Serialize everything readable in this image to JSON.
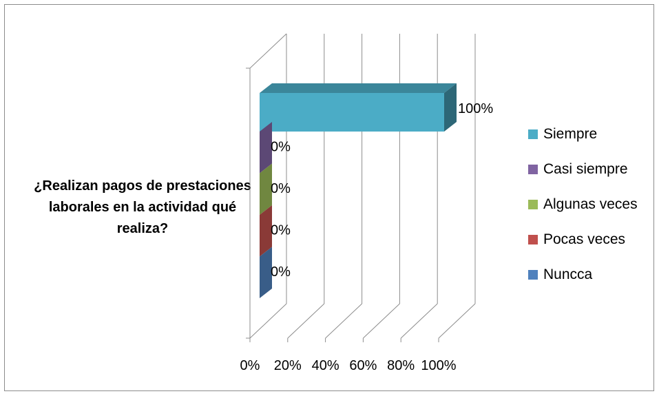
{
  "chart_data": {
    "type": "bar",
    "orientation": "horizontal",
    "style": "3d",
    "category_label": "¿Realizan pagos de prestaciones laborales en la actividad qué realiza?",
    "series": [
      {
        "name": "Siempre",
        "value": 100,
        "label": "100%",
        "color": "#4BACC6"
      },
      {
        "name": "Casi siempre",
        "value": 0,
        "label": "0%",
        "color": "#8064A2"
      },
      {
        "name": "Algunas veces",
        "value": 0,
        "label": "0%",
        "color": "#9BBB59"
      },
      {
        "name": "Pocas veces",
        "value": 0,
        "label": "0%",
        "color": "#C0504D"
      },
      {
        "name": "Nuncca",
        "value": 0,
        "label": "0%",
        "color": "#4F81BD"
      }
    ],
    "x_ticks": [
      "0%",
      "20%",
      "40%",
      "60%",
      "80%",
      "100%"
    ],
    "xlim": [
      0,
      100
    ],
    "grid": true,
    "legend_position": "right"
  }
}
